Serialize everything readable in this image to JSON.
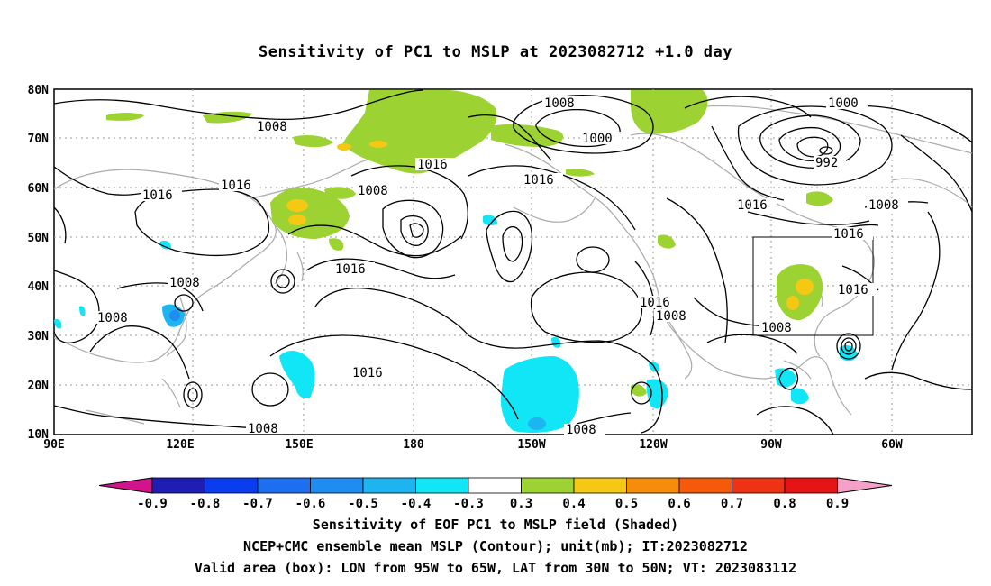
{
  "title": "Sensitivity of PC1 to MSLP at 2023082712 +1.0 day",
  "x_ticks": [
    "90E",
    "120E",
    "150E",
    "180",
    "150W",
    "120W",
    "90W",
    "60W"
  ],
  "y_ticks": [
    "80N",
    "70N",
    "60N",
    "50N",
    "40N",
    "30N",
    "20N",
    "10N"
  ],
  "contour_labels": [
    {
      "text": "1008"
    },
    {
      "text": "1016"
    },
    {
      "text": "1016"
    },
    {
      "text": "1008"
    },
    {
      "text": "1016"
    },
    {
      "text": "1008"
    },
    {
      "text": "1000"
    },
    {
      "text": "1016"
    },
    {
      "text": "992"
    },
    {
      "text": "1000"
    },
    {
      "text": "1008"
    },
    {
      "text": "1016"
    },
    {
      "text": "1016"
    },
    {
      "text": "1016"
    },
    {
      "text": "1008"
    },
    {
      "text": "1008"
    },
    {
      "text": "1008"
    },
    {
      "text": "1016"
    },
    {
      "text": "1016"
    },
    {
      "text": "1008"
    },
    {
      "text": "1016"
    },
    {
      "text": "1008"
    },
    {
      "text": "1008"
    }
  ],
  "colorbar": {
    "labels": [
      "-0.9",
      "-0.8",
      "-0.7",
      "-0.6",
      "-0.5",
      "-0.4",
      "-0.3",
      "0.3",
      "0.4",
      "0.5",
      "0.6",
      "0.7",
      "0.8",
      "0.9"
    ],
    "colors": [
      "#1e1eb4",
      "#0a3cf0",
      "#1e6ef0",
      "#1e8cf0",
      "#1eb4f0",
      "#10e6f5",
      "#ffffff",
      "#9cd232",
      "#f5c814",
      "#f58c0a",
      "#f55a0a",
      "#f03214",
      "#e61414"
    ],
    "under_color": "#d2148c",
    "over_color": "#f5a0c8"
  },
  "captions": [
    "Sensitivity of EOF PC1 to MSLP field (Shaded)",
    "NCEP+CMC ensemble mean MSLP (Contour); unit(mb); IT:2023082712",
    "Valid area (box): LON from 95W to 65W, LAT from 30N to 50N; VT: 2023083112"
  ]
}
